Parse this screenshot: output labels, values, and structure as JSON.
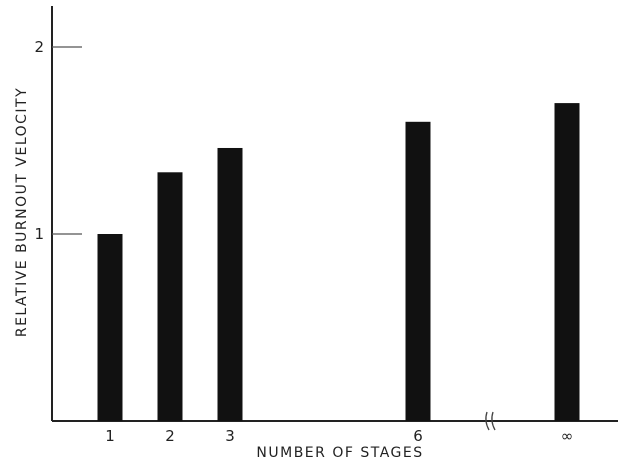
{
  "chart_data": {
    "type": "bar",
    "categories": [
      "1",
      "2",
      "3",
      "6",
      "∞"
    ],
    "values": [
      1.0,
      1.33,
      1.46,
      1.6,
      1.7
    ],
    "xlabel": "NUMBER OF STAGES",
    "ylabel": "RELATIVE BURNOUT VELOCITY",
    "ylim": [
      0,
      2.2
    ],
    "yticks": [
      1,
      2
    ],
    "ytick_labels": [
      "1",
      "2"
    ],
    "x_axis_break_between": [
      "6",
      "∞"
    ],
    "grid": false,
    "bar_color": "#111111"
  }
}
